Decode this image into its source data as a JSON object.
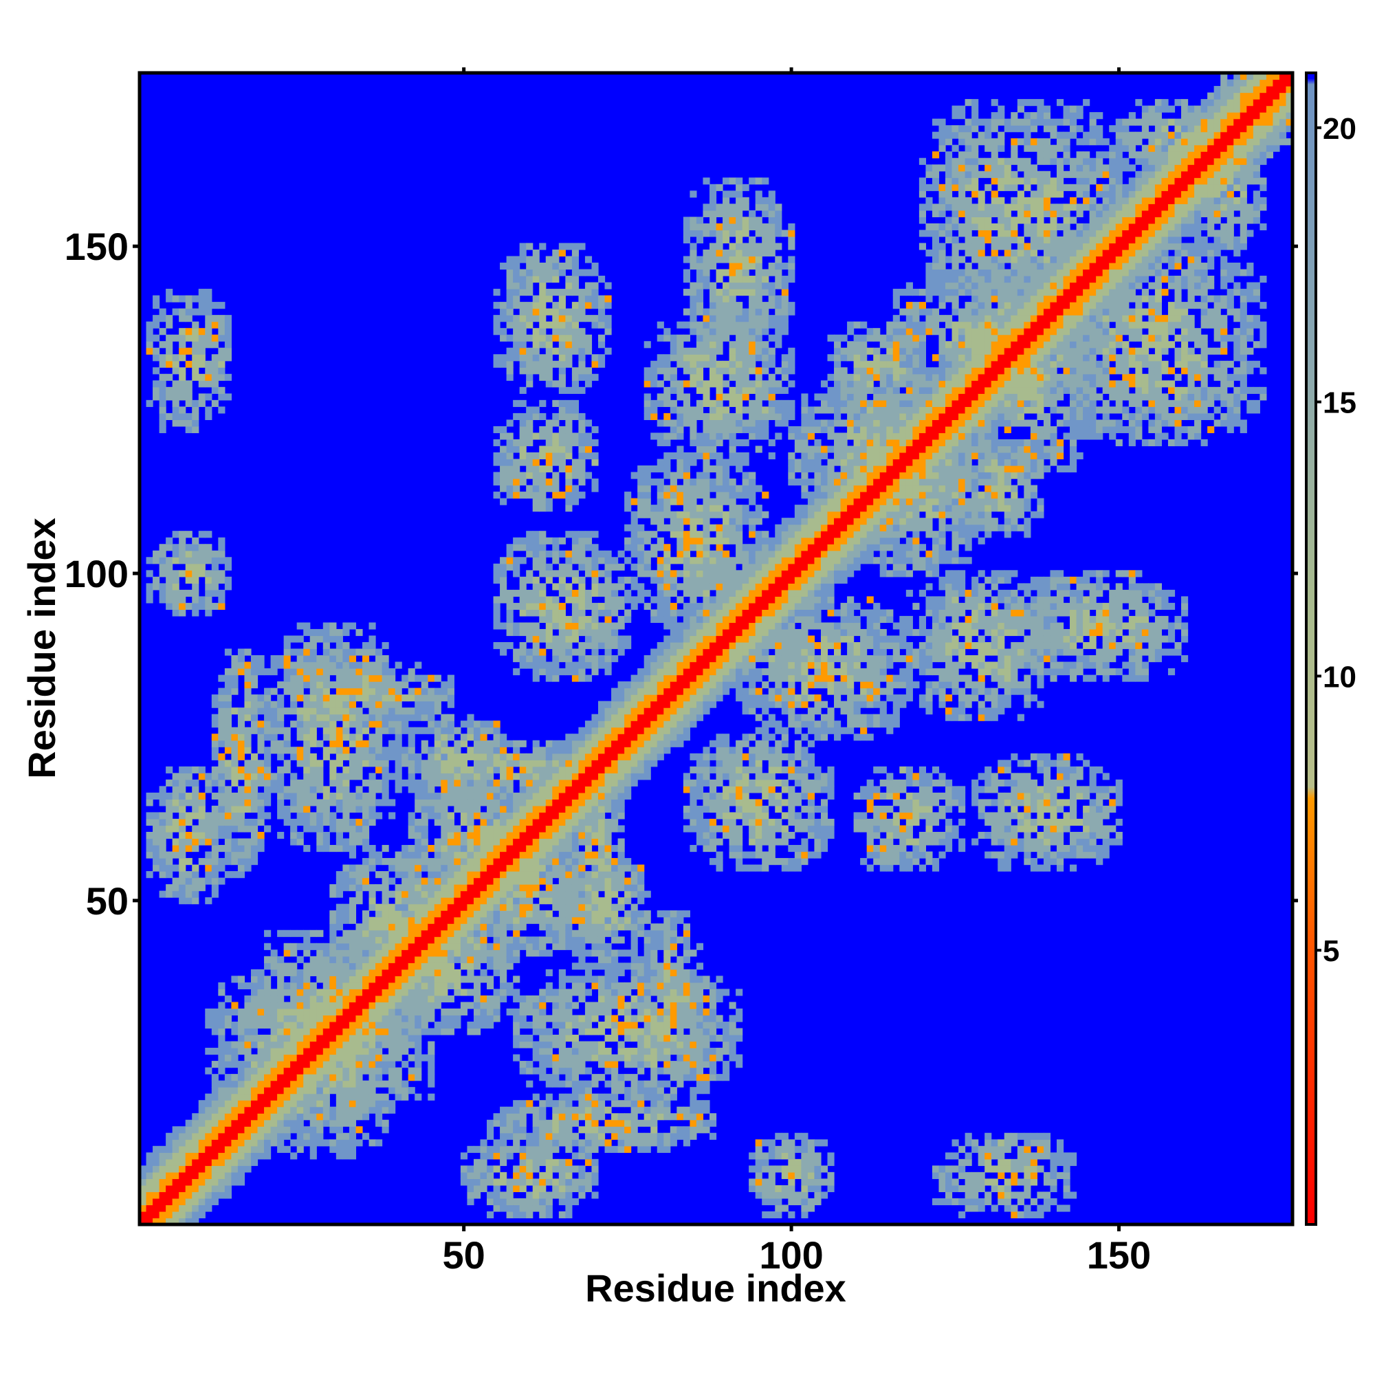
{
  "chart_data": {
    "type": "heatmap",
    "title": "",
    "xlabel": "Residue index",
    "ylabel": "Residue index",
    "n_residues": 176,
    "xlim": [
      1,
      176
    ],
    "ylim": [
      1,
      176
    ],
    "x_ticks": [
      50,
      100,
      150
    ],
    "y_ticks": [
      50,
      100,
      150
    ],
    "x_tick_labels": [
      "50",
      "100",
      "150"
    ],
    "y_tick_labels": [
      "50",
      "100",
      "150"
    ],
    "colorbar": {
      "range": [
        0,
        21
      ],
      "ticks": [
        5,
        10,
        15,
        20
      ],
      "tick_labels": [
        "5",
        "10",
        "15",
        "20"
      ],
      "placement": "right",
      "cutoff_color": "#0000ff"
    },
    "colors": {
      "near": "#ff0000",
      "mid": "#ff9a00",
      "far": "#a8bb8e",
      "outer": "#7096c8",
      "beyond_cutoff": "#0000ff"
    },
    "contact_regions": [
      {
        "i": [
          2,
          14
        ],
        "j": [
          50,
          70
        ]
      },
      {
        "i": [
          2,
          14
        ],
        "j": [
          94,
          106
        ]
      },
      {
        "i": [
          2,
          14
        ],
        "j": [
          122,
          143
        ]
      },
      {
        "i": [
          11,
          45
        ],
        "j": [
          16,
          40
        ]
      },
      {
        "i": [
          12,
          20
        ],
        "j": [
          54,
          88
        ]
      },
      {
        "i": [
          20,
          40
        ],
        "j": [
          58,
          92
        ]
      },
      {
        "i": [
          22,
          48
        ],
        "j": [
          76,
          86
        ]
      },
      {
        "i": [
          30,
          50
        ],
        "j": [
          36,
          58
        ]
      },
      {
        "i": [
          42,
          60
        ],
        "j": [
          52,
          68
        ]
      },
      {
        "i": [
          40,
          58
        ],
        "j": [
          64,
          78
        ]
      },
      {
        "i": [
          45,
          70
        ],
        "j": [
          66,
          74
        ]
      },
      {
        "i": [
          55,
          75
        ],
        "j": [
          84,
          106
        ]
      },
      {
        "i": [
          55,
          70
        ],
        "j": [
          110,
          126
        ]
      },
      {
        "i": [
          55,
          72
        ],
        "j": [
          128,
          150
        ]
      },
      {
        "i": [
          75,
          96
        ],
        "j": [
          92,
          118
        ]
      },
      {
        "i": [
          78,
          100
        ],
        "j": [
          118,
          140
        ]
      },
      {
        "i": [
          84,
          100
        ],
        "j": [
          134,
          160
        ]
      },
      {
        "i": [
          100,
          130
        ],
        "j": [
          108,
          130
        ]
      },
      {
        "i": [
          106,
          120
        ],
        "j": [
          124,
          138
        ]
      },
      {
        "i": [
          115,
          148
        ],
        "j": [
          126,
          146
        ]
      },
      {
        "i": [
          120,
          150
        ],
        "j": [
          140,
          172
        ]
      },
      {
        "i": [
          150,
          170
        ],
        "j": [
          160,
          172
        ]
      },
      {
        "i": [
          164,
          176
        ],
        "j": [
          170,
          176
        ]
      }
    ]
  }
}
